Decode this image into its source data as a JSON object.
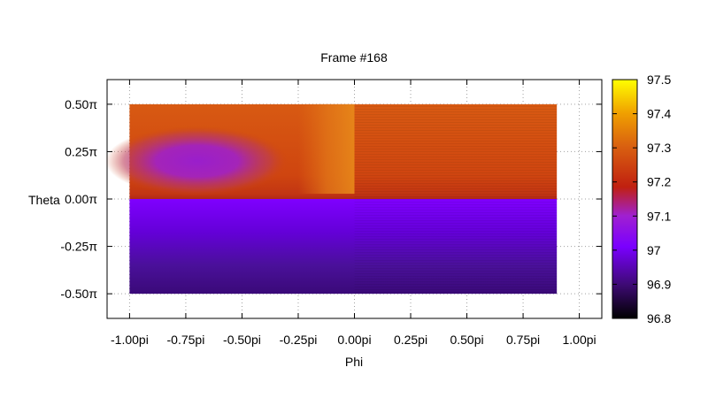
{
  "chart_data": {
    "type": "heatmap",
    "title": "Frame #168",
    "xlabel": "Phi",
    "ylabel": "Theta",
    "x_range": [
      -1.0,
      0.9
    ],
    "y_range": [
      -0.5,
      0.5
    ],
    "xlim": [
      -1.1,
      1.1
    ],
    "ylim": [
      -0.63,
      0.63
    ],
    "x_ticks": [
      -1.0,
      -0.75,
      -0.5,
      -0.25,
      0.0,
      0.25,
      0.5,
      0.75,
      1.0
    ],
    "x_tick_labels": [
      "-1.00pi",
      "-0.75pi",
      "-0.50pi",
      "-0.25pi",
      "0.00pi",
      "0.25pi",
      "0.50pi",
      "0.75pi",
      "1.00pi"
    ],
    "y_ticks": [
      0.5,
      0.25,
      0.0,
      -0.25,
      -0.5
    ],
    "y_tick_labels": [
      "0.50π",
      "0.25π",
      "0.00π",
      "-0.25π",
      "-0.50π"
    ],
    "grid": true,
    "colorbar": {
      "min": 96.8,
      "max": 97.5,
      "ticks": [
        97.5,
        97.4,
        97.3,
        97.2,
        97.1,
        97.0,
        96.9,
        96.8
      ],
      "tick_labels": [
        "97.5",
        "97.4",
        "97.3",
        "97.2",
        "97.1",
        "97",
        "96.9",
        "96.8"
      ],
      "palette": "black-purple-red-orange-yellow"
    },
    "regions": [
      {
        "name": "upper band",
        "theta": [
          0.0,
          0.5
        ],
        "phi": [
          -1.0,
          0.9
        ],
        "value": 97.24
      },
      {
        "name": "upper-left low spot",
        "theta_center": 0.2,
        "phi_center": -0.7,
        "value": 97.07
      },
      {
        "name": "upper bright strip",
        "theta": [
          0.2,
          0.5
        ],
        "phi": [
          -0.25,
          0.0
        ],
        "value": 97.28
      },
      {
        "name": "lower band top",
        "theta": [
          -0.05,
          0.0
        ],
        "phi": [
          -1.0,
          0.9
        ],
        "value": 97.0
      },
      {
        "name": "lower band bottom",
        "theta": [
          -0.5,
          -0.45
        ],
        "phi": [
          -1.0,
          0.9
        ],
        "value": 96.89
      }
    ]
  }
}
